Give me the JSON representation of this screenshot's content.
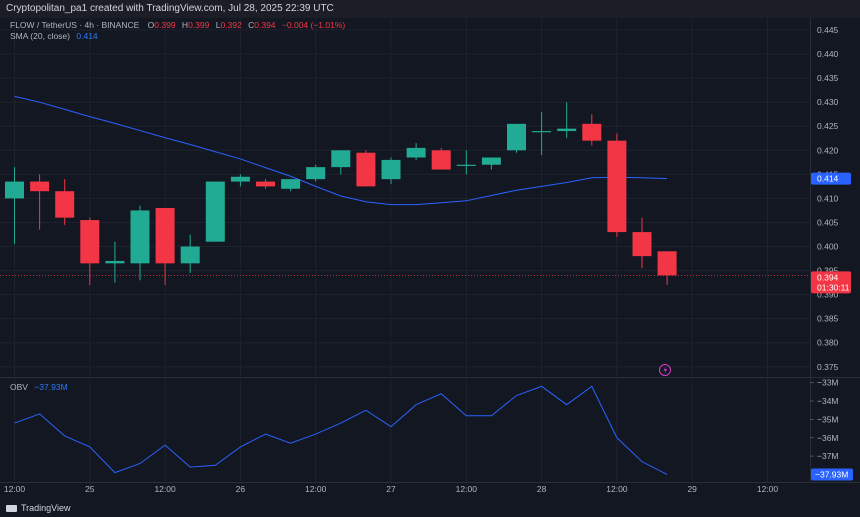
{
  "header": {
    "text": "Cryptopolitan_pa1 created with TradingView.com, Jul 28, 2025 22:39 UTC"
  },
  "legend": {
    "symbol": "FLOW / TetherUS · 4h · BINANCE",
    "o_label": "O",
    "o": "0.399",
    "h_label": "H",
    "h": "0.399",
    "l_label": "L",
    "l": "0.392",
    "c_label": "C",
    "c": "0.394",
    "change": "−0.004 (−1.01%)",
    "sma_label": "SMA (20, close)",
    "sma_value": "0.414",
    "obv_label": "OBV",
    "obv_value": "−37.93M"
  },
  "colors": {
    "up": "#22ab94",
    "down": "#f23645",
    "sma": "#2962ff",
    "obv": "#2962ff",
    "background": "#131722"
  },
  "footer": {
    "logo_text": "TradingView"
  },
  "chart_data": [
    {
      "type": "candlestick",
      "title": "FLOW / TetherUS · 4h · BINANCE",
      "x_tick_labels": [
        "12:00",
        "25",
        "12:00",
        "26",
        "12:00",
        "27",
        "12:00",
        "28",
        "12:00",
        "29",
        "12:00"
      ],
      "x_tick_candle_index": [
        0,
        3,
        6,
        9,
        12,
        15,
        18,
        21,
        24,
        27,
        30
      ],
      "y_tick_labels": [
        "0.445",
        "0.440",
        "0.435",
        "0.430",
        "0.425",
        "0.420",
        "0.415",
        "0.410",
        "0.405",
        "0.400",
        "0.395",
        "0.390",
        "0.385",
        "0.380",
        "0.375"
      ],
      "ylim": [
        0.3735,
        0.4475
      ],
      "candles": [
        {
          "o": 0.41,
          "h": 0.4165,
          "l": 0.4005,
          "c": 0.4135
        },
        {
          "o": 0.4135,
          "h": 0.415,
          "l": 0.4035,
          "c": 0.4115
        },
        {
          "o": 0.4115,
          "h": 0.414,
          "l": 0.4045,
          "c": 0.406
        },
        {
          "o": 0.4055,
          "h": 0.406,
          "l": 0.392,
          "c": 0.3965
        },
        {
          "o": 0.3965,
          "h": 0.401,
          "l": 0.3925,
          "c": 0.397
        },
        {
          "o": 0.3965,
          "h": 0.4085,
          "l": 0.393,
          "c": 0.4075
        },
        {
          "o": 0.408,
          "h": 0.408,
          "l": 0.392,
          "c": 0.3965
        },
        {
          "o": 0.3965,
          "h": 0.4025,
          "l": 0.3945,
          "c": 0.4
        },
        {
          "o": 0.401,
          "h": 0.4135,
          "l": 0.401,
          "c": 0.4135
        },
        {
          "o": 0.4135,
          "h": 0.415,
          "l": 0.4125,
          "c": 0.4145
        },
        {
          "o": 0.4135,
          "h": 0.414,
          "l": 0.412,
          "c": 0.4125
        },
        {
          "o": 0.412,
          "h": 0.414,
          "l": 0.4115,
          "c": 0.414
        },
        {
          "o": 0.414,
          "h": 0.417,
          "l": 0.4135,
          "c": 0.4165
        },
        {
          "o": 0.4165,
          "h": 0.42,
          "l": 0.415,
          "c": 0.42
        },
        {
          "o": 0.4195,
          "h": 0.42,
          "l": 0.4125,
          "c": 0.4125
        },
        {
          "o": 0.414,
          "h": 0.4185,
          "l": 0.413,
          "c": 0.418
        },
        {
          "o": 0.4185,
          "h": 0.4215,
          "l": 0.418,
          "c": 0.4205
        },
        {
          "o": 0.42,
          "h": 0.4205,
          "l": 0.416,
          "c": 0.416
        },
        {
          "o": 0.417,
          "h": 0.42,
          "l": 0.415,
          "c": 0.417
        },
        {
          "o": 0.417,
          "h": 0.4185,
          "l": 0.416,
          "c": 0.4185
        },
        {
          "o": 0.42,
          "h": 0.4255,
          "l": 0.4195,
          "c": 0.4255
        },
        {
          "o": 0.424,
          "h": 0.428,
          "l": 0.419,
          "c": 0.424
        },
        {
          "o": 0.424,
          "h": 0.43,
          "l": 0.4225,
          "c": 0.4245
        },
        {
          "o": 0.4255,
          "h": 0.4275,
          "l": 0.421,
          "c": 0.422
        },
        {
          "o": 0.422,
          "h": 0.4235,
          "l": 0.402,
          "c": 0.403
        },
        {
          "o": 0.403,
          "h": 0.406,
          "l": 0.3955,
          "c": 0.398
        },
        {
          "o": 0.399,
          "h": 0.399,
          "l": 0.392,
          "c": 0.394
        }
      ],
      "last_price_label": "0.394",
      "countdown_label": "01:30:11",
      "sma_price_label": "0.414",
      "series": [
        {
          "name": "SMA (20, close)",
          "values": [
            0.4312,
            0.43,
            0.4285,
            0.427,
            0.4256,
            0.4241,
            0.4226,
            0.4212,
            0.4197,
            0.4182,
            0.4164,
            0.4146,
            0.4125,
            0.4105,
            0.4093,
            0.4087,
            0.4087,
            0.4091,
            0.4095,
            0.4106,
            0.4117,
            0.4125,
            0.4133,
            0.4143,
            0.4144,
            0.4143,
            0.4141
          ]
        }
      ]
    },
    {
      "type": "line",
      "title": "OBV",
      "y_tick_labels": [
        "−33M",
        "−34M",
        "−35M",
        "−36M",
        "−37M"
      ],
      "ylim": [
        -38.3,
        -32.8
      ],
      "series": [
        {
          "name": "OBV",
          "values": [
            -35.2,
            -34.7,
            -35.9,
            -36.5,
            -37.9,
            -37.4,
            -36.4,
            -37.6,
            -37.5,
            -36.5,
            -35.8,
            -36.3,
            -35.8,
            -35.2,
            -34.5,
            -35.4,
            -34.2,
            -33.6,
            -34.8,
            -34.8,
            -33.7,
            -33.2,
            -34.2,
            -33.2,
            -36.0,
            -37.3,
            -38.0
          ]
        }
      ],
      "last_value_label": "−37.93M"
    }
  ]
}
